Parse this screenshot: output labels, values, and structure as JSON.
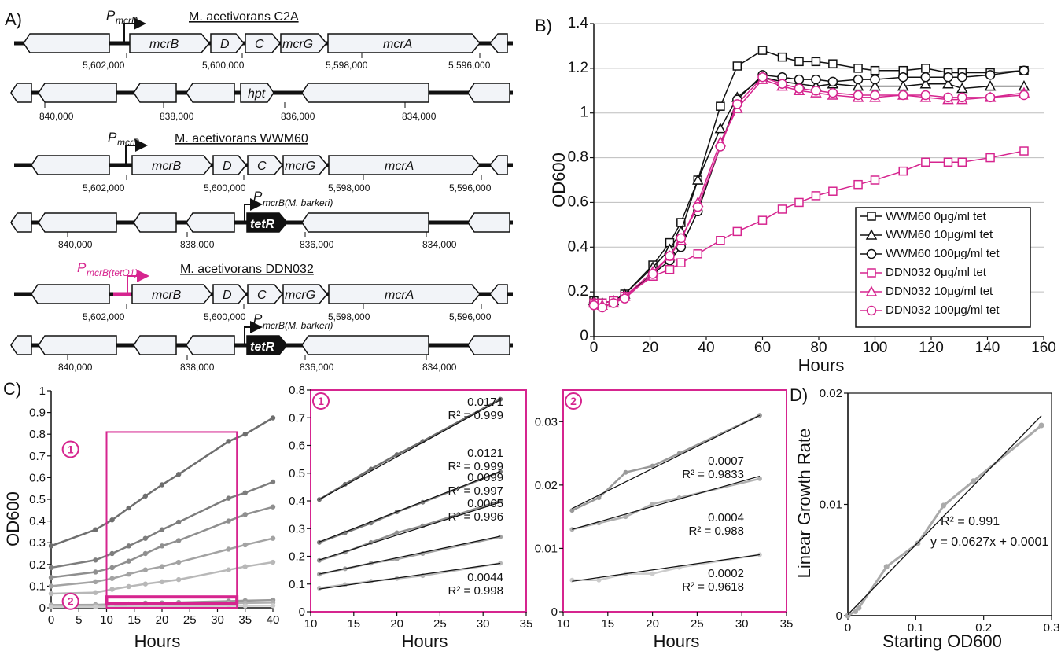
{
  "panelA": {
    "letter": "A)",
    "strains": [
      {
        "name": "M. acetivorans C2A",
        "promoter": "mcrB"
      },
      {
        "name": "M. acetivorans WWM60",
        "promoter": "mcrB"
      },
      {
        "name": "M. acetivorans DDN032",
        "promoter": "mcrB(tetO1)"
      }
    ],
    "mcr_genes": [
      "mcrB",
      "D",
      "C",
      "mcrG",
      "mcrA"
    ],
    "mcr_coords": [
      "5,602,000",
      "5,600,000",
      "5,598,000",
      "5,596,000"
    ],
    "hpt_label": "hpt",
    "tetR_label": "tetR",
    "tetR_promoter": "mcrB(M. barkeri)",
    "locus_coords": [
      "840,000",
      "838,000",
      "836,000",
      "834,000"
    ],
    "colors": {
      "magenta": "#D6258F",
      "fill": "#f2f4f8"
    }
  },
  "chart_data": [
    {
      "panel": "B",
      "type": "line",
      "xlabel": "Hours",
      "ylabel": "OD600",
      "xlim": [
        0,
        160
      ],
      "ylim": [
        0,
        1.4
      ],
      "xticks": [
        "0",
        "20",
        "40",
        "60",
        "80",
        "100",
        "120",
        "140",
        "160"
      ],
      "yticks": [
        "0",
        "0.2",
        "0.4",
        "0.6",
        "0.8",
        "1",
        "1.2",
        "1.4"
      ],
      "grid": true,
      "legend_position": "bottom-right",
      "x": [
        0,
        3,
        7,
        11,
        21,
        27,
        31,
        37,
        45,
        51,
        60,
        67,
        73,
        79,
        85,
        94,
        100,
        110,
        118,
        126,
        131,
        141,
        153
      ],
      "series": [
        {
          "name": "WWM60 0μg/ml tet",
          "color": "#111111",
          "marker": "square",
          "values": [
            0.16,
            0.15,
            0.16,
            0.19,
            0.32,
            0.42,
            0.51,
            0.7,
            1.03,
            1.21,
            1.28,
            1.25,
            1.23,
            1.23,
            1.22,
            1.2,
            1.19,
            1.19,
            1.2,
            1.18,
            1.18,
            1.18,
            1.19
          ]
        },
        {
          "name": "WWM60 10μg/ml tet",
          "color": "#111111",
          "marker": "triangle",
          "values": [
            0.16,
            0.15,
            0.16,
            0.19,
            0.31,
            0.39,
            0.47,
            0.7,
            0.93,
            1.07,
            1.16,
            1.14,
            1.13,
            1.12,
            1.13,
            1.12,
            1.12,
            1.12,
            1.13,
            1.13,
            1.11,
            1.12,
            1.12
          ]
        },
        {
          "name": "WWM60 100μg/ml tet",
          "color": "#111111",
          "marker": "circle",
          "values": [
            0.15,
            0.14,
            0.15,
            0.18,
            0.28,
            0.34,
            0.4,
            0.56,
            0.85,
            1.06,
            1.17,
            1.16,
            1.15,
            1.15,
            1.14,
            1.15,
            1.15,
            1.16,
            1.16,
            1.16,
            1.16,
            1.17,
            1.19
          ]
        },
        {
          "name": "DDN032 0μg/ml tet",
          "color": "#D6258F",
          "marker": "square",
          "values": [
            0.15,
            0.15,
            0.16,
            0.18,
            0.27,
            0.3,
            0.33,
            0.37,
            0.43,
            0.47,
            0.52,
            0.57,
            0.6,
            0.63,
            0.65,
            0.68,
            0.7,
            0.74,
            0.78,
            0.78,
            0.78,
            0.8,
            0.83
          ]
        },
        {
          "name": "DDN032 10μg/ml tet",
          "color": "#D6258F",
          "marker": "triangle",
          "values": [
            0.15,
            0.14,
            0.15,
            0.18,
            0.29,
            0.36,
            0.43,
            0.6,
            0.87,
            1.02,
            1.15,
            1.12,
            1.1,
            1.09,
            1.08,
            1.07,
            1.07,
            1.08,
            1.07,
            1.06,
            1.06,
            1.07,
            1.09
          ]
        },
        {
          "name": "DDN032 100μg/ml tet",
          "color": "#D6258F",
          "marker": "circle",
          "values": [
            0.14,
            0.13,
            0.15,
            0.17,
            0.28,
            0.36,
            0.44,
            0.58,
            0.85,
            1.04,
            1.16,
            1.13,
            1.11,
            1.1,
            1.09,
            1.08,
            1.08,
            1.08,
            1.08,
            1.07,
            1.07,
            1.07,
            1.08
          ]
        }
      ]
    },
    {
      "panel": "C",
      "type": "line",
      "xlabel": "Hours",
      "ylabel": "OD600",
      "xlim": [
        0,
        40
      ],
      "ylim": [
        0,
        1
      ],
      "xticks": [
        "0",
        "5",
        "10",
        "15",
        "20",
        "25",
        "30",
        "35",
        "40"
      ],
      "yticks": [
        "0",
        "0.1",
        "0.2",
        "0.3",
        "0.4",
        "0.5",
        "0.6",
        "0.7",
        "0.8",
        "0.9",
        "1"
      ],
      "x": [
        0,
        8,
        11,
        14,
        17,
        20,
        23,
        32,
        35,
        40
      ],
      "series": [
        {
          "color": "#6e6e6e",
          "values": [
            0.285,
            0.36,
            0.405,
            0.46,
            0.515,
            0.567,
            0.615,
            0.767,
            0.8,
            0.875
          ]
        },
        {
          "color": "#7d7d7d",
          "values": [
            0.185,
            0.22,
            0.25,
            0.285,
            0.32,
            0.36,
            0.395,
            0.505,
            0.53,
            0.58
          ]
        },
        {
          "color": "#8f8f8f",
          "values": [
            0.14,
            0.165,
            0.185,
            0.215,
            0.25,
            0.285,
            0.31,
            0.4,
            0.43,
            0.465
          ]
        },
        {
          "color": "#a3a3a3",
          "values": [
            0.1,
            0.12,
            0.135,
            0.155,
            0.175,
            0.19,
            0.21,
            0.27,
            0.29,
            0.32
          ]
        },
        {
          "color": "#b8b8b8",
          "values": [
            0.065,
            0.07,
            0.085,
            0.098,
            0.11,
            0.12,
            0.13,
            0.175,
            0.19,
            0.21
          ]
        },
        {
          "color": "#9a9a9a",
          "values": [
            0.013,
            0.014,
            0.016,
            0.018,
            0.022,
            0.023,
            0.025,
            0.031,
            0.033,
            0.036
          ]
        },
        {
          "color": "#b0b0b0",
          "values": [
            0.011,
            0.012,
            0.013,
            0.014,
            0.015,
            0.017,
            0.018,
            0.021,
            0.022,
            0.024
          ]
        },
        {
          "color": "#cccccc",
          "values": [
            0.004,
            0.004,
            0.005,
            0.005,
            0.006,
            0.006,
            0.007,
            0.009,
            0.009,
            0.01
          ]
        }
      ],
      "callouts": [
        "1",
        "2"
      ]
    },
    {
      "panel": "C1",
      "type": "scatter",
      "xlabel": "Hours",
      "callout": "1",
      "xlim": [
        10,
        35
      ],
      "ylim": [
        0,
        0.8
      ],
      "xticks": [
        "10",
        "15",
        "20",
        "25",
        "30",
        "35"
      ],
      "yticks": [
        "0",
        "0.1",
        "0.2",
        "0.3",
        "0.4",
        "0.5",
        "0.6",
        "0.7",
        "0.8"
      ],
      "x": [
        11,
        14,
        17,
        20,
        23,
        32
      ],
      "series": [
        {
          "color": "#6e6e6e",
          "values": [
            0.405,
            0.46,
            0.515,
            0.567,
            0.615,
            0.767
          ],
          "fit": [
            0.405,
            0.7641
          ],
          "slope": "0.0171",
          "r2": "R² = 0.999"
        },
        {
          "color": "#7d7d7d",
          "values": [
            0.25,
            0.285,
            0.32,
            0.36,
            0.395,
            0.505
          ],
          "fit": [
            0.252,
            0.5061
          ],
          "slope": "0.0121",
          "r2": "R² = 0.999"
        },
        {
          "color": "#8f8f8f",
          "values": [
            0.185,
            0.215,
            0.25,
            0.285,
            0.31,
            0.4
          ],
          "fit": [
            0.187,
            0.3949
          ],
          "slope": "0.0099",
          "r2": "R² = 0.997"
        },
        {
          "color": "#a3a3a3",
          "values": [
            0.135,
            0.155,
            0.175,
            0.19,
            0.21,
            0.27
          ],
          "fit": [
            0.136,
            0.2725
          ],
          "slope": "0.0065",
          "r2": "R² = 0.996"
        },
        {
          "color": "#b8b8b8",
          "values": [
            0.085,
            0.098,
            0.11,
            0.12,
            0.13,
            0.175
          ],
          "fit": [
            0.082,
            0.1744
          ],
          "slope": "0.0044",
          "r2": "R² = 0.998"
        }
      ]
    },
    {
      "panel": "C2",
      "type": "scatter",
      "xlabel": "Hours",
      "callout": "2",
      "xlim": [
        10,
        35
      ],
      "ylim": [
        0,
        0.035
      ],
      "xticks": [
        "10",
        "15",
        "20",
        "25",
        "30",
        "35"
      ],
      "yticks": [
        "0",
        "0.01",
        "0.02",
        "0.03"
      ],
      "x": [
        11,
        14,
        17,
        20,
        23,
        32
      ],
      "series": [
        {
          "color": "#9a9a9a",
          "values": [
            0.016,
            0.018,
            0.022,
            0.023,
            0.025,
            0.031
          ],
          "fit": [
            0.0163,
            0.031
          ],
          "slope": "0.0007",
          "r2": "R² = 0.9833"
        },
        {
          "color": "#b0b0b0",
          "values": [
            0.013,
            0.014,
            0.015,
            0.017,
            0.018,
            0.021
          ],
          "fit": [
            0.013,
            0.0214
          ],
          "slope": "0.0004",
          "r2": "R² = 0.988"
        },
        {
          "color": "#cccccc",
          "values": [
            0.005,
            0.005,
            0.006,
            0.006,
            0.007,
            0.009
          ],
          "fit": [
            0.0048,
            0.009
          ],
          "slope": "0.0002",
          "r2": "R² = 0.9618"
        }
      ]
    },
    {
      "panel": "D",
      "type": "line",
      "xlabel": "Starting OD600",
      "ylabel": "Linear Growth Rate",
      "xlim": [
        0,
        0.3
      ],
      "ylim": [
        0,
        0.02
      ],
      "xticks": [
        "0",
        "0.1",
        "0.2",
        "0.3"
      ],
      "yticks": [
        "0",
        "0.01",
        "0.02"
      ],
      "x": [
        0.0,
        0.011,
        0.016,
        0.057,
        0.103,
        0.141,
        0.185,
        0.285
      ],
      "values": [
        0.0,
        0.0004,
        0.0007,
        0.0044,
        0.0065,
        0.0099,
        0.0121,
        0.0171
      ],
      "fit": {
        "slope": 0.0627,
        "intercept": 0.0001
      },
      "annotations": [
        "R² = 0.991",
        "y = 0.0627x + 0.0001"
      ]
    }
  ]
}
